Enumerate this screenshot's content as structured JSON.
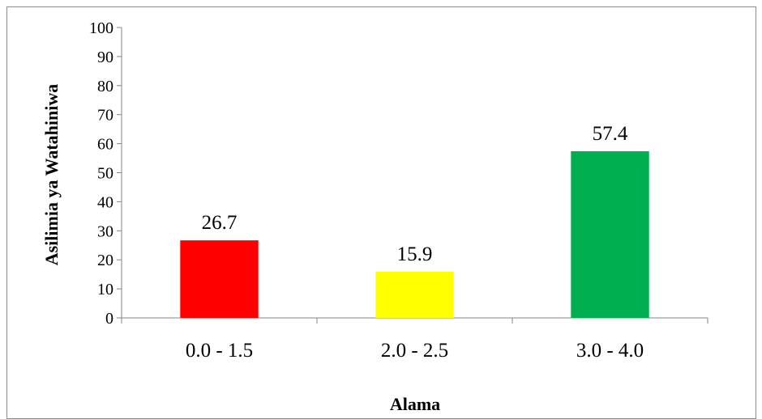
{
  "chart_data": {
    "type": "bar",
    "categories": [
      "0.0 - 1.5",
      "2.0 - 2.5",
      "3.0 - 4.0"
    ],
    "values": [
      26.7,
      15.9,
      57.4
    ],
    "data_labels": [
      "26.7",
      "15.9",
      "57.4"
    ],
    "bar_colors": [
      "#ff0000",
      "#ffff00",
      "#00b050"
    ],
    "title": "",
    "xlabel": "Alama",
    "ylabel": "Asilimia  ya Watahiniwa",
    "ylim": [
      0,
      100
    ],
    "yticks": [
      "0",
      "10",
      "20",
      "30",
      "40",
      "50",
      "60",
      "70",
      "80",
      "90",
      "100"
    ],
    "grid": false,
    "legend": "none"
  }
}
